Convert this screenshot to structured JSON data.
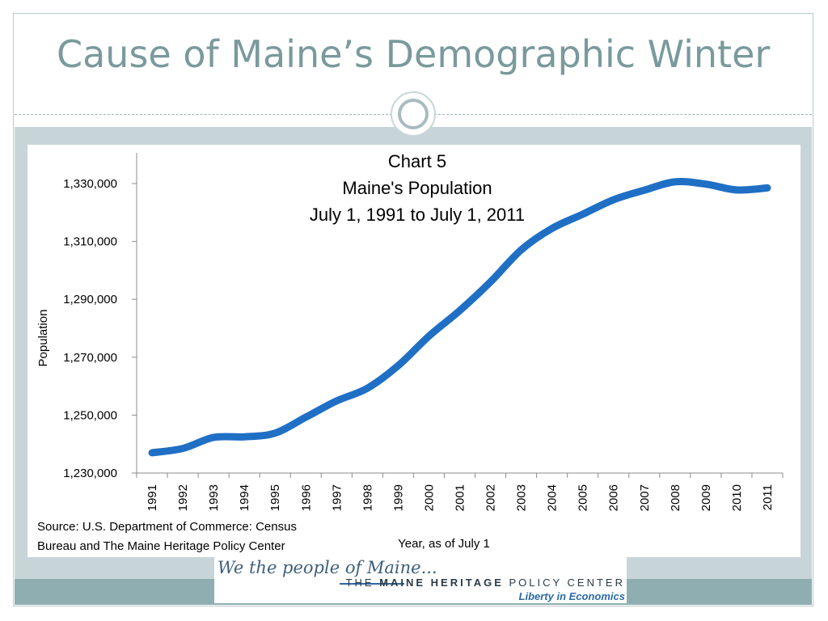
{
  "slide": {
    "title": "Cause of Maine’s Demographic Winter",
    "source_line1": "Source: U.S. Department of Commerce: Census",
    "source_line2": "Bureau and The Maine Heritage Policy Center",
    "logo": {
      "script": "We the people of Maine...",
      "org_prefix": "THE ",
      "org_bold": "MAINE HERITAGE",
      "org_rest": " POLICY CENTER",
      "tagline": "Liberty in Economics"
    }
  },
  "colors": {
    "title": "#7a9a9c",
    "band": "#c8d5d8",
    "footer": "#8faeb1",
    "series": "#1f6fc5"
  },
  "chart_data": {
    "type": "line",
    "title_lines": [
      "Chart 5",
      "Maine's Population",
      "July 1, 1991 to July 1, 2011"
    ],
    "xlabel": "Year, as of July 1",
    "ylabel": "Population",
    "ylim": [
      1230000,
      1330000
    ],
    "yticks": [
      1230000,
      1250000,
      1270000,
      1290000,
      1310000,
      1330000
    ],
    "ytick_labels": [
      "1,230,000",
      "1,250,000",
      "1,270,000",
      "1,290,000",
      "1,310,000",
      "1,330,000"
    ],
    "categories": [
      "1991",
      "1992",
      "1993",
      "1994",
      "1995",
      "1996",
      "1997",
      "1998",
      "1999",
      "2000",
      "2001",
      "2002",
      "2003",
      "2004",
      "2005",
      "2006",
      "2007",
      "2008",
      "2009",
      "2010",
      "2011"
    ],
    "series": [
      {
        "values": [
          1237000,
          1238500,
          1242300,
          1242500,
          1243800,
          1249300,
          1254900,
          1259300,
          1267100,
          1277300,
          1286100,
          1296000,
          1307100,
          1314500,
          1319400,
          1324400,
          1327700,
          1330600,
          1329800,
          1327800,
          1328500
        ]
      }
    ],
    "grid": false,
    "legend": "none"
  }
}
